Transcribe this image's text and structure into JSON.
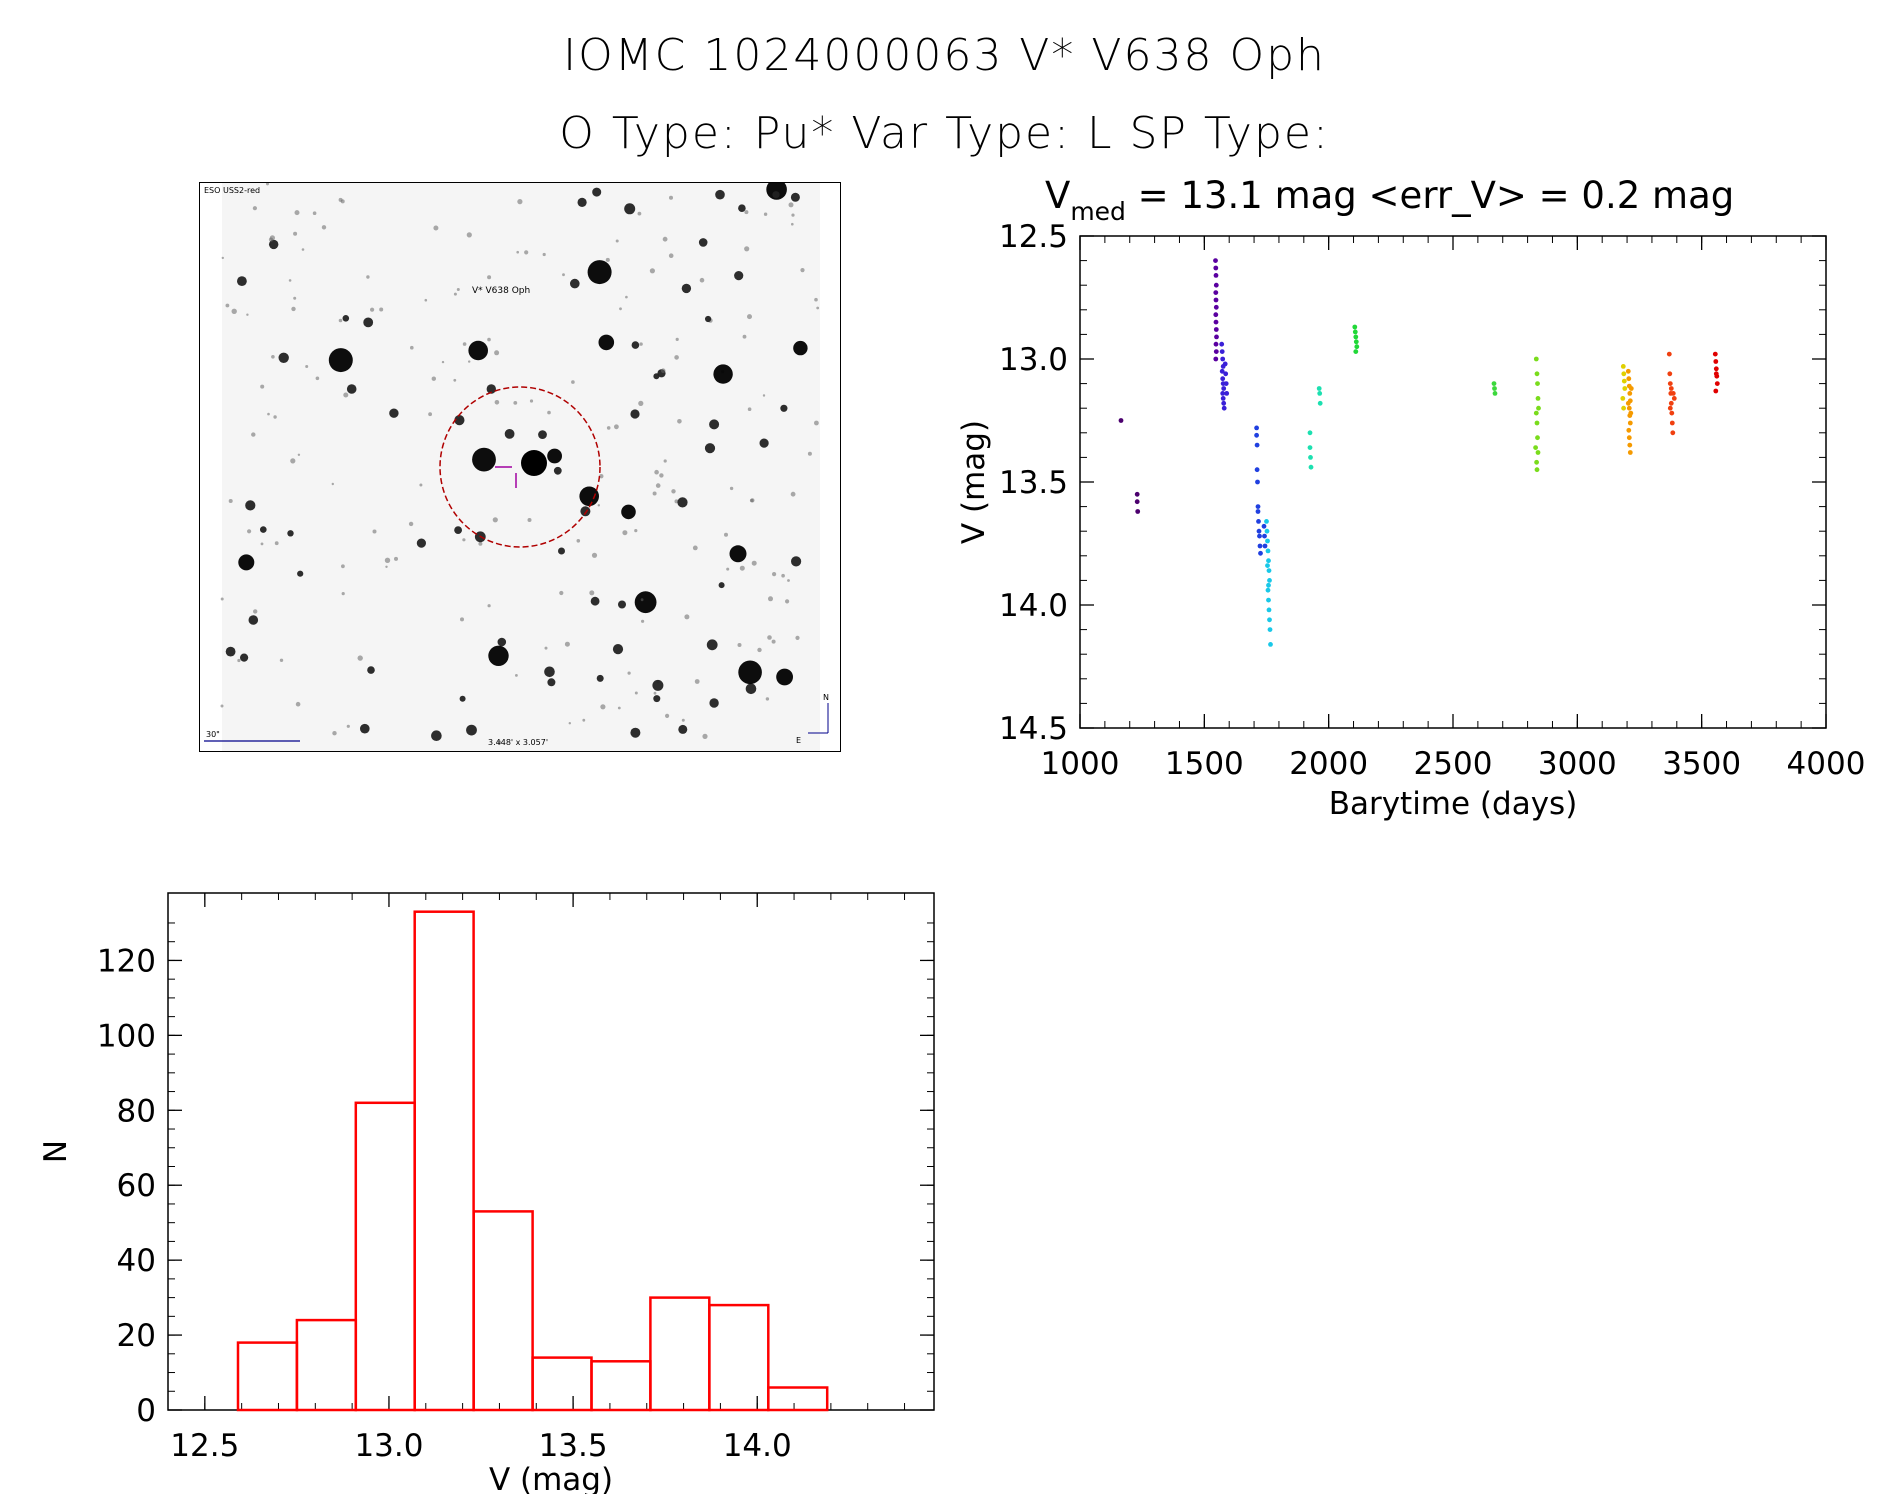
{
  "header": {
    "title": "IOMC 1024000063   V* V638 Oph",
    "subtitle": "O Type: Pu*  Var Type: L  SP Type:"
  },
  "finder_chart": {
    "survey_label": "ESO USS2-red",
    "target_label": "V* V638 Oph",
    "scale_label": "30\"",
    "size_label": "3.448' x 3.057'",
    "north_label": "N",
    "east_label": "E",
    "label_color": "#00008b",
    "target_color": "#b00000"
  },
  "chart_data": [
    {
      "type": "scatter",
      "title_main": "V",
      "title_sub": "med",
      "title_rest": " = 13.1 mag <err_V> = 0.2 mag",
      "xlabel": "Barytime (days)",
      "ylabel": "V (mag)",
      "xlim": [
        1000,
        4000
      ],
      "ylim": [
        12.5,
        14.5
      ],
      "y_inverted": true,
      "xticks": [
        "1000",
        "1500",
        "2000",
        "2500",
        "3000",
        "3500",
        "4000"
      ],
      "yticks": [
        "12.5",
        "13.0",
        "13.5",
        "14.0",
        "14.5"
      ],
      "series": [
        {
          "color": "#4b006e",
          "points": [
            [
              1165,
              13.25
            ],
            [
              1230,
              13.55
            ],
            [
              1230,
              13.58
            ],
            [
              1232,
              13.62
            ]
          ]
        },
        {
          "color": "#5a00a0",
          "points": [
            [
              1545,
              12.6
            ],
            [
              1546,
              12.63
            ],
            [
              1547,
              12.66
            ],
            [
              1548,
              12.7
            ],
            [
              1546,
              12.73
            ],
            [
              1547,
              12.76
            ],
            [
              1548,
              12.79
            ],
            [
              1546,
              12.82
            ],
            [
              1547,
              12.85
            ],
            [
              1548,
              12.88
            ],
            [
              1549,
              12.91
            ],
            [
              1547,
              12.94
            ],
            [
              1548,
              12.97
            ],
            [
              1546,
              13.0
            ]
          ]
        },
        {
          "color": "#3a20d8",
          "points": [
            [
              1570,
              12.94
            ],
            [
              1572,
              12.97
            ],
            [
              1574,
              13.0
            ],
            [
              1576,
              13.03
            ],
            [
              1572,
              13.05
            ],
            [
              1574,
              13.08
            ],
            [
              1576,
              13.1
            ],
            [
              1578,
              13.12
            ],
            [
              1574,
              13.14
            ],
            [
              1576,
              13.16
            ],
            [
              1578,
              13.18
            ],
            [
              1580,
              13.2
            ],
            [
              1584,
              13.02
            ],
            [
              1586,
              13.06
            ],
            [
              1588,
              13.1
            ],
            [
              1590,
              13.14
            ]
          ]
        },
        {
          "color": "#2040e0",
          "points": [
            [
              1710,
              13.28
            ],
            [
              1710,
              13.31
            ],
            [
              1712,
              13.35
            ],
            [
              1712,
              13.45
            ],
            [
              1714,
              13.5
            ],
            [
              1716,
              13.6
            ],
            [
              1716,
              13.62
            ],
            [
              1718,
              13.66
            ],
            [
              1720,
              13.7
            ],
            [
              1722,
              13.72
            ],
            [
              1724,
              13.76
            ],
            [
              1726,
              13.79
            ],
            [
              1740,
              13.68
            ],
            [
              1742,
              13.72
            ],
            [
              1744,
              13.76
            ]
          ]
        },
        {
          "color": "#19c8e8",
          "points": [
            [
              1750,
              13.66
            ],
            [
              1752,
              13.7
            ],
            [
              1754,
              13.74
            ],
            [
              1756,
              13.78
            ],
            [
              1758,
              13.82
            ],
            [
              1760,
              13.86
            ],
            [
              1762,
              13.9
            ],
            [
              1756,
              13.94
            ],
            [
              1758,
              13.98
            ],
            [
              1760,
              14.02
            ],
            [
              1762,
              14.06
            ],
            [
              1764,
              14.1
            ],
            [
              1766,
              14.16
            ],
            [
              1754,
              13.84
            ],
            [
              1758,
              13.92
            ]
          ]
        },
        {
          "color": "#1ce0b0",
          "points": [
            [
              1925,
              13.3
            ],
            [
              1925,
              13.36
            ],
            [
              1927,
              13.4
            ],
            [
              1929,
              13.44
            ],
            [
              1962,
              13.12
            ],
            [
              1964,
              13.14
            ],
            [
              1966,
              13.18
            ]
          ]
        },
        {
          "color": "#21d838",
          "points": [
            [
              2105,
              12.87
            ],
            [
              2107,
              12.89
            ],
            [
              2109,
              12.91
            ],
            [
              2111,
              12.93
            ],
            [
              2113,
              12.95
            ],
            [
              2109,
              12.97
            ]
          ]
        },
        {
          "color": "#3cd83c",
          "points": [
            [
              2665,
              13.1
            ],
            [
              2667,
              13.12
            ],
            [
              2669,
              13.14
            ]
          ]
        },
        {
          "color": "#7adc1c",
          "points": [
            [
              2835,
              13.0
            ],
            [
              2838,
              13.06
            ],
            [
              2840,
              13.1
            ],
            [
              2842,
              13.16
            ],
            [
              2835,
              13.22
            ],
            [
              2838,
              13.26
            ],
            [
              2840,
              13.32
            ],
            [
              2842,
              13.38
            ],
            [
              2836,
              13.42
            ],
            [
              2838,
              13.45
            ],
            [
              2832,
              13.36
            ],
            [
              2844,
              13.2
            ]
          ]
        },
        {
          "color": "#e0d000",
          "points": [
            [
              3185,
              13.03
            ],
            [
              3187,
              13.06
            ],
            [
              3189,
              13.09
            ],
            [
              3191,
              13.12
            ],
            [
              3183,
              13.16
            ],
            [
              3186,
              13.2
            ]
          ]
        },
        {
          "color": "#f59a00",
          "points": [
            [
              3205,
              13.05
            ],
            [
              3207,
              13.08
            ],
            [
              3209,
              13.11
            ],
            [
              3211,
              13.14
            ],
            [
              3213,
              13.17
            ],
            [
              3209,
              13.2
            ],
            [
              3211,
              13.23
            ],
            [
              3213,
              13.26
            ],
            [
              3207,
              13.29
            ],
            [
              3209,
              13.32
            ],
            [
              3211,
              13.35
            ],
            [
              3213,
              13.38
            ],
            [
              3215,
              13.22
            ],
            [
              3205,
              13.18
            ],
            [
              3217,
              13.12
            ]
          ]
        },
        {
          "color": "#f04010",
          "points": [
            [
              3370,
              12.98
            ],
            [
              3372,
              13.06
            ],
            [
              3374,
              13.1
            ],
            [
              3376,
              13.14
            ],
            [
              3378,
              13.18
            ],
            [
              3380,
              13.22
            ],
            [
              3382,
              13.26
            ],
            [
              3384,
              13.3
            ],
            [
              3386,
              13.14
            ],
            [
              3390,
              13.16
            ],
            [
              3374,
              13.2
            ],
            [
              3378,
              13.12
            ]
          ]
        },
        {
          "color": "#e00000",
          "points": [
            [
              3555,
              12.98
            ],
            [
              3557,
              13.01
            ],
            [
              3559,
              13.04
            ],
            [
              3561,
              13.07
            ],
            [
              3563,
              13.1
            ],
            [
              3557,
              13.13
            ],
            [
              3559,
              13.06
            ]
          ]
        }
      ]
    },
    {
      "type": "bar",
      "title": "",
      "xlabel": "V (mag)",
      "ylabel": "N",
      "xlim": [
        12.4,
        14.48
      ],
      "ylim": [
        0,
        138
      ],
      "xticks": [
        "12.5",
        "13.0",
        "13.5",
        "14.0"
      ],
      "yticks": [
        "0",
        "20",
        "40",
        "60",
        "80",
        "100",
        "120"
      ],
      "bin_width": 0.16,
      "bin_starts": [
        12.59,
        12.75,
        12.91,
        13.07,
        13.23,
        13.39,
        13.55,
        13.71,
        13.87,
        14.03
      ],
      "values": [
        18,
        24,
        82,
        133,
        53,
        14,
        13,
        30,
        28,
        6
      ],
      "bar_color": "#ff0000"
    }
  ]
}
